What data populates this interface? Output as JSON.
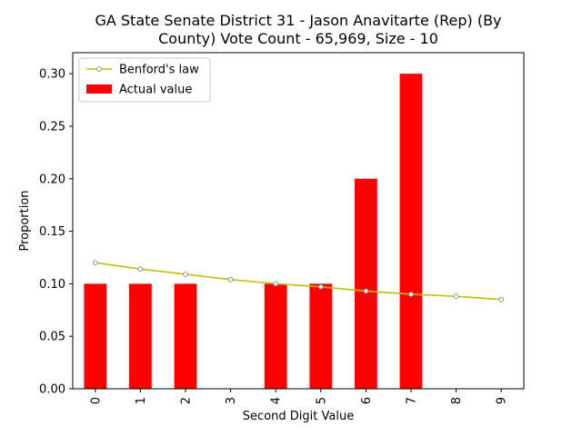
{
  "chart_data": {
    "type": "bar",
    "title_lines": [
      "GA State Senate District 31 - Jason Anavitarte (Rep) (By",
      "County) Vote Count - 65,969, Size - 10"
    ],
    "xlabel": "Second Digit Value",
    "ylabel": "Proportion",
    "categories": [
      "0",
      "1",
      "2",
      "3",
      "4",
      "5",
      "6",
      "7",
      "8",
      "9"
    ],
    "ylim": [
      0,
      0.32
    ],
    "yticks": [
      0.0,
      0.05,
      0.1,
      0.15,
      0.2,
      0.25,
      0.3
    ],
    "ytick_labels": [
      "0.00",
      "0.05",
      "0.10",
      "0.15",
      "0.20",
      "0.25",
      "0.30"
    ],
    "series": [
      {
        "name": "Actual value",
        "kind": "bar",
        "color": "#ff0000",
        "values": [
          0.1,
          0.1,
          0.1,
          0.0,
          0.1,
          0.1,
          0.2,
          0.3,
          0.0,
          0.0
        ]
      },
      {
        "name": "Benford's law",
        "kind": "line",
        "color": "#bfbf00",
        "values": [
          0.12,
          0.114,
          0.109,
          0.104,
          0.1,
          0.097,
          0.093,
          0.09,
          0.088,
          0.085
        ]
      }
    ],
    "legend": {
      "position": "top-left",
      "entries": [
        "Benford's law",
        "Actual value"
      ]
    },
    "grid": false
  }
}
